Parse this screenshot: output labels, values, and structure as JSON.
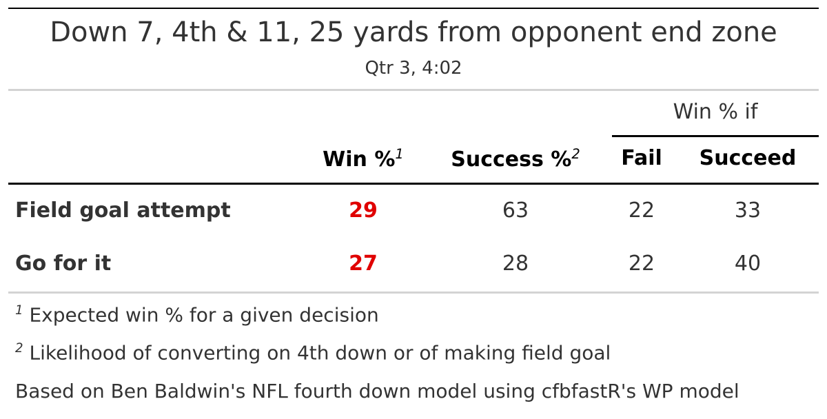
{
  "title": "Down 7, 4th & 11, 25 yards from opponent end zone",
  "subtitle": "Qtr 3, 4:02",
  "spanner": "Win % if",
  "columns": [
    {
      "label": "Win %",
      "footnote_mark": "1"
    },
    {
      "label": "Success %",
      "footnote_mark": "2"
    },
    {
      "label": "Fail"
    },
    {
      "label": "Succeed"
    }
  ],
  "rows": [
    [
      "Field goal attempt",
      "29",
      "63",
      "22",
      "33"
    ],
    [
      "Go for it",
      "27",
      "28",
      "22",
      "40"
    ]
  ],
  "footnotes": [
    {
      "mark": "1",
      "text": "Expected win % for a given decision"
    },
    {
      "mark": "2",
      "text": "Likelihood of converting on 4th down or of making field goal"
    }
  ],
  "source_note": "Based on Ben Baldwin's NFL fourth down model using cfbfastR's WP model"
}
